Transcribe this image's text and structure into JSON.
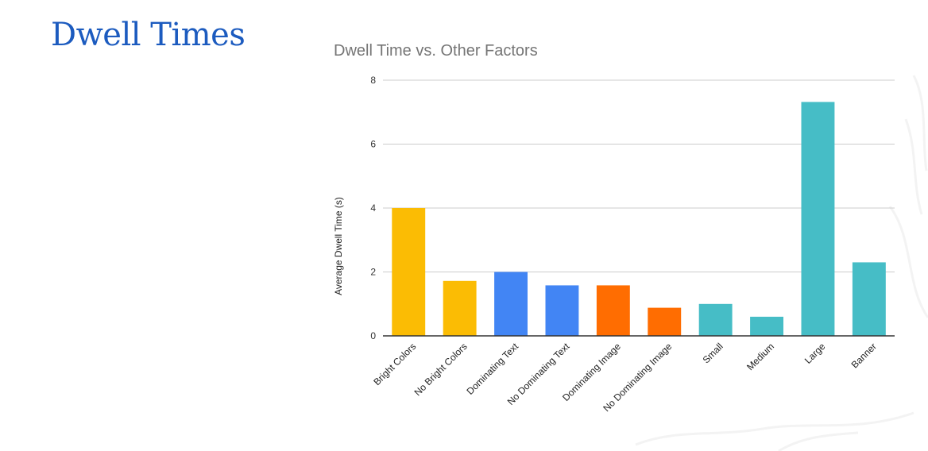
{
  "slide": {
    "title": "Dwell Times"
  },
  "colors": {
    "title": "#1c5bbf",
    "yellow": "#fbbc04",
    "blue": "#4285f4",
    "orange": "#ff6d01",
    "teal": "#46bdc6",
    "gridline": "#cccccc",
    "axis": "#333333"
  },
  "chart_data": {
    "type": "bar",
    "title": "Dwell Time vs. Other Factors",
    "xlabel": "",
    "ylabel": "Average Dwell Time (s)",
    "ylim": [
      0,
      8
    ],
    "yticks": [
      "0",
      "2",
      "4",
      "6",
      "8"
    ],
    "grid": true,
    "legend": "none",
    "categories": [
      "Bright Colors",
      "No Bright Colors",
      "Dominating Text",
      "No Dominating Text",
      "Dominating Image",
      "No Dominating Image",
      "Small",
      "Medium",
      "Large",
      "Banner"
    ],
    "values": [
      4.0,
      1.72,
      2.0,
      1.58,
      1.58,
      0.88,
      1.0,
      0.6,
      7.32,
      2.3
    ],
    "bar_colors": [
      "#fbbc04",
      "#fbbc04",
      "#4285f4",
      "#4285f4",
      "#ff6d01",
      "#ff6d01",
      "#46bdc6",
      "#46bdc6",
      "#46bdc6",
      "#46bdc6"
    ]
  }
}
